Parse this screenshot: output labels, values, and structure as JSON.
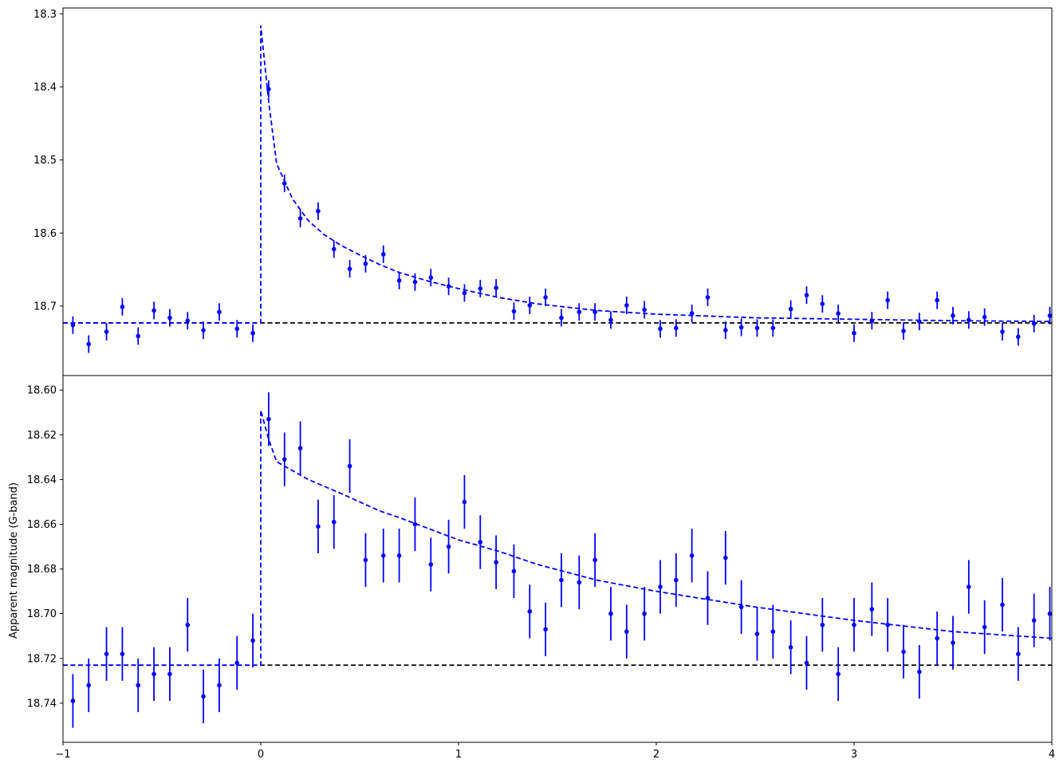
{
  "chart_data": {
    "type": "scatter",
    "title": "",
    "shared_x": {
      "xlim": [
        -1,
        4
      ],
      "ticks": [
        -1,
        0,
        1,
        2,
        3,
        4
      ],
      "tick_labels": [
        "−1",
        "0",
        "1",
        "2",
        "3",
        "4"
      ],
      "xlabel": ""
    },
    "marker_color": "#0000ff",
    "model_color": "#0000ff",
    "baseline_color": "#000000",
    "panels": [
      {
        "ylabel": "",
        "ylim": [
          18.795,
          18.292
        ],
        "ticks": [
          18.3,
          18.4,
          18.5,
          18.6,
          18.7
        ],
        "tick_labels": [
          "18.3",
          "18.4",
          "18.5",
          "18.6",
          "18.7"
        ],
        "baseline": 18.723,
        "peak": 18.316,
        "series": [
          {
            "x": [
              -0.95,
              -0.87,
              -0.78,
              -0.7,
              -0.62,
              -0.54,
              -0.46,
              -0.37,
              -0.29,
              -0.21,
              -0.12,
              -0.04,
              0.04,
              0.12,
              0.2,
              0.29,
              0.37,
              0.45,
              0.53,
              0.62,
              0.7,
              0.78,
              0.86,
              0.95,
              1.03,
              1.11,
              1.19,
              1.28,
              1.36,
              1.44,
              1.52,
              1.61,
              1.69,
              1.77,
              1.85,
              1.94,
              2.02,
              2.1,
              2.18,
              2.26,
              2.35,
              2.43,
              2.51,
              2.59,
              2.68,
              2.76,
              2.84,
              2.92,
              3.0,
              3.09,
              3.17,
              3.25,
              3.33,
              3.42,
              3.5,
              3.58,
              3.66,
              3.75,
              3.83,
              3.91,
              3.99
            ],
            "y": [
              18.726,
              18.752,
              18.735,
              18.701,
              18.741,
              18.706,
              18.716,
              18.72,
              18.733,
              18.708,
              18.731,
              18.737,
              18.403,
              18.532,
              18.58,
              18.57,
              18.622,
              18.649,
              18.642,
              18.629,
              18.665,
              18.667,
              18.661,
              18.673,
              18.682,
              18.676,
              18.675,
              18.707,
              18.699,
              18.688,
              18.716,
              18.708,
              18.708,
              18.719,
              18.699,
              18.705,
              18.731,
              18.73,
              18.71,
              18.688,
              18.733,
              18.729,
              18.73,
              18.73,
              18.704,
              18.685,
              18.697,
              18.71,
              18.737,
              18.72,
              18.692,
              18.734,
              18.721,
              18.692,
              18.713,
              18.719,
              18.715,
              18.735,
              18.742,
              18.724,
              18.713
            ],
            "err": [
              0.012,
              0.012,
              0.012,
              0.012,
              0.012,
              0.012,
              0.012,
              0.012,
              0.012,
              0.012,
              0.012,
              0.012,
              0.012,
              0.012,
              0.012,
              0.012,
              0.012,
              0.012,
              0.012,
              0.012,
              0.012,
              0.012,
              0.012,
              0.012,
              0.012,
              0.012,
              0.012,
              0.012,
              0.012,
              0.012,
              0.012,
              0.012,
              0.012,
              0.012,
              0.012,
              0.012,
              0.012,
              0.012,
              0.012,
              0.012,
              0.012,
              0.012,
              0.012,
              0.012,
              0.012,
              0.012,
              0.012,
              0.012,
              0.012,
              0.012,
              0.012,
              0.012,
              0.012,
              0.012,
              0.012,
              0.012,
              0.012,
              0.012,
              0.012,
              0.012,
              0.012
            ]
          }
        ],
        "model": {
          "x": [
            -1,
            0,
            0,
            0.04,
            0.08,
            0.16,
            0.24,
            0.32,
            0.4,
            0.5,
            0.6,
            0.7,
            0.85,
            1.0,
            1.2,
            1.4,
            1.7,
            2.0,
            2.5,
            3.0,
            3.5,
            4.0
          ],
          "y": [
            18.723,
            18.723,
            18.316,
            18.42,
            18.505,
            18.553,
            18.583,
            18.602,
            18.616,
            18.63,
            18.643,
            18.654,
            18.666,
            18.676,
            18.688,
            18.697,
            18.706,
            18.711,
            18.716,
            18.718,
            18.72,
            18.721
          ]
        }
      },
      {
        "ylabel": "Apparent magnitude (G-band)",
        "ylim": [
          18.7575,
          18.5935
        ],
        "ticks": [
          18.6,
          18.62,
          18.64,
          18.66,
          18.68,
          18.7,
          18.72,
          18.74
        ],
        "tick_labels": [
          "18.60",
          "18.62",
          "18.64",
          "18.66",
          "18.68",
          "18.70",
          "18.72",
          "18.74"
        ],
        "baseline": 18.723,
        "peak": 18.609,
        "series": [
          {
            "x": [
              -0.95,
              -0.87,
              -0.78,
              -0.7,
              -0.62,
              -0.54,
              -0.46,
              -0.37,
              -0.29,
              -0.21,
              -0.12,
              -0.04,
              0.04,
              0.12,
              0.2,
              0.29,
              0.37,
              0.45,
              0.53,
              0.62,
              0.7,
              0.78,
              0.86,
              0.95,
              1.03,
              1.11,
              1.19,
              1.28,
              1.36,
              1.44,
              1.52,
              1.61,
              1.69,
              1.77,
              1.85,
              1.94,
              2.02,
              2.1,
              2.18,
              2.26,
              2.35,
              2.43,
              2.51,
              2.59,
              2.68,
              2.76,
              2.84,
              2.92,
              3.0,
              3.09,
              3.17,
              3.25,
              3.33,
              3.42,
              3.5,
              3.58,
              3.66,
              3.75,
              3.83,
              3.91,
              3.99
            ],
            "y": [
              18.739,
              18.732,
              18.718,
              18.718,
              18.732,
              18.727,
              18.727,
              18.705,
              18.737,
              18.732,
              18.722,
              18.712,
              18.613,
              18.631,
              18.626,
              18.661,
              18.659,
              18.634,
              18.676,
              18.674,
              18.674,
              18.66,
              18.678,
              18.67,
              18.65,
              18.668,
              18.677,
              18.681,
              18.699,
              18.707,
              18.685,
              18.686,
              18.676,
              18.7,
              18.708,
              18.7,
              18.688,
              18.685,
              18.674,
              18.693,
              18.675,
              18.697,
              18.709,
              18.708,
              18.715,
              18.722,
              18.705,
              18.727,
              18.705,
              18.698,
              18.705,
              18.717,
              18.726,
              18.711,
              18.713,
              18.688,
              18.706,
              18.696,
              18.718,
              18.703,
              18.7
            ],
            "err": [
              0.012,
              0.012,
              0.012,
              0.012,
              0.012,
              0.012,
              0.012,
              0.012,
              0.012,
              0.012,
              0.012,
              0.012,
              0.012,
              0.012,
              0.012,
              0.012,
              0.012,
              0.012,
              0.012,
              0.012,
              0.012,
              0.012,
              0.012,
              0.012,
              0.012,
              0.012,
              0.012,
              0.012,
              0.012,
              0.012,
              0.012,
              0.012,
              0.012,
              0.012,
              0.012,
              0.012,
              0.012,
              0.012,
              0.012,
              0.012,
              0.012,
              0.012,
              0.012,
              0.012,
              0.012,
              0.012,
              0.012,
              0.012,
              0.012,
              0.012,
              0.012,
              0.012,
              0.012,
              0.012,
              0.012,
              0.012,
              0.012,
              0.012,
              0.012,
              0.012,
              0.012
            ]
          }
        ],
        "model": {
          "x": [
            -1,
            0,
            0,
            0.04,
            0.08,
            0.16,
            0.24,
            0.32,
            0.4,
            0.5,
            0.6,
            0.7,
            0.85,
            1.0,
            1.2,
            1.4,
            1.7,
            2.0,
            2.5,
            3.0,
            3.5,
            4.0
          ],
          "y": [
            18.723,
            18.723,
            18.609,
            18.622,
            18.632,
            18.636,
            18.64,
            18.643,
            18.646,
            18.65,
            18.654,
            18.657,
            18.662,
            18.667,
            18.672,
            18.678,
            18.685,
            18.69,
            18.697,
            18.703,
            18.708,
            18.711
          ]
        }
      }
    ]
  }
}
